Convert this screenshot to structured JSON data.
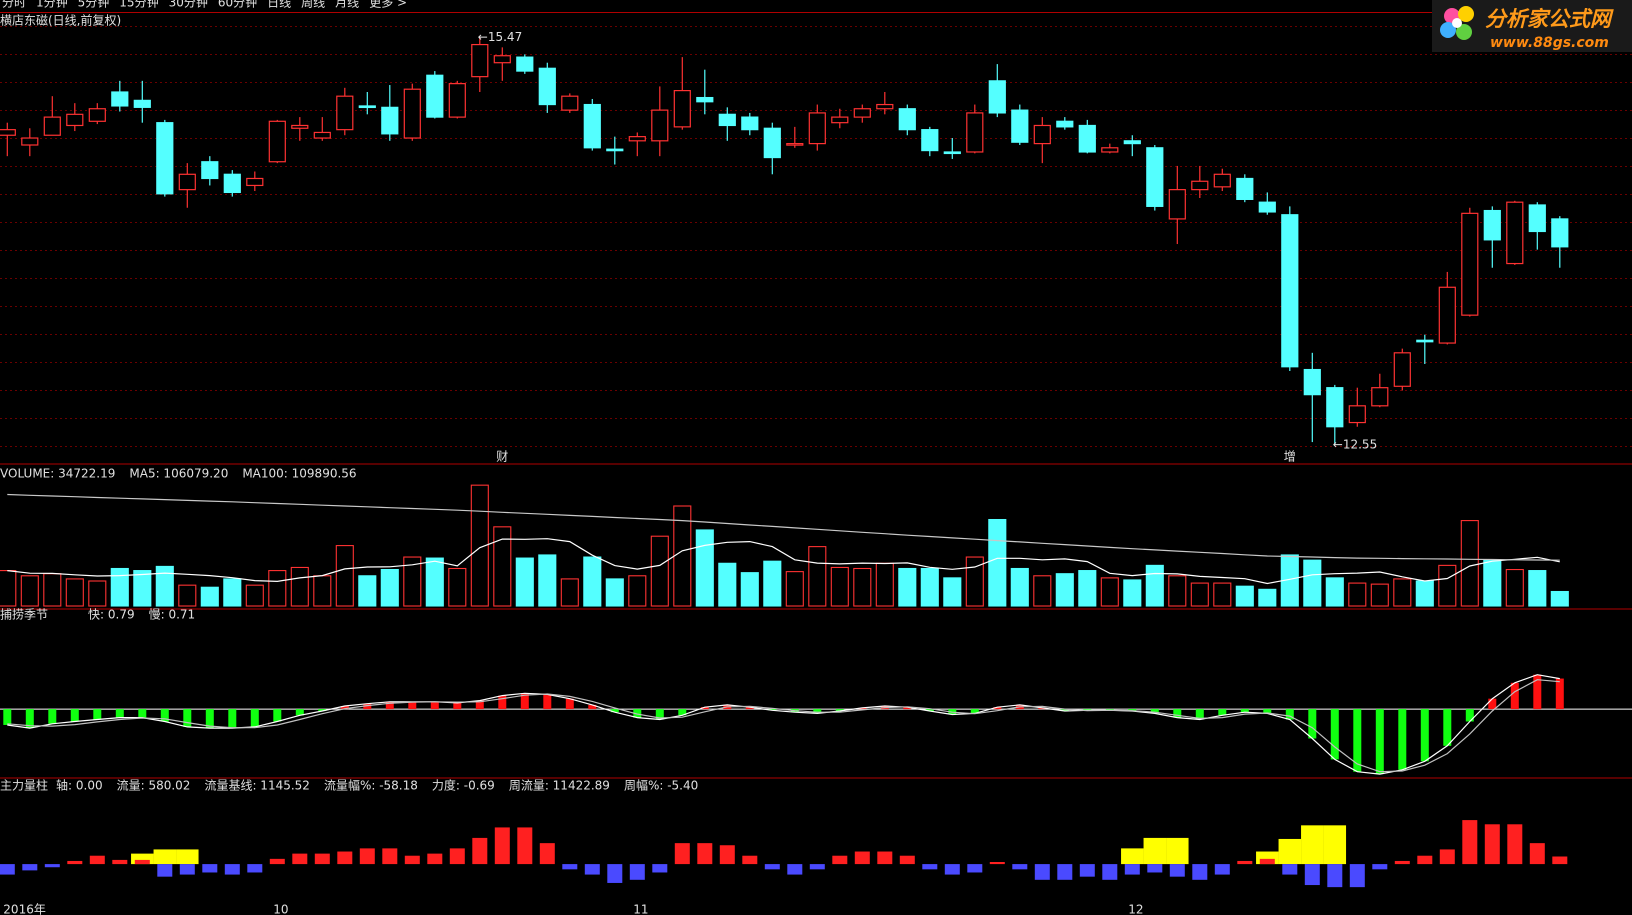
{
  "toolbar": {
    "items": [
      {
        "text": "分时",
        "color": "#d8d8d8"
      },
      {
        "text": "1分钟",
        "color": "#d8d8d8"
      },
      {
        "text": "5分钟",
        "color": "#d8d8d8"
      },
      {
        "text": "15分钟",
        "color": "#d8d8d8"
      },
      {
        "text": "30分钟",
        "color": "#d8d8d8"
      },
      {
        "text": "60分钟",
        "color": "#d8d8d8"
      },
      {
        "text": "日线",
        "color": "#54ffff"
      },
      {
        "text": "周线",
        "color": "#d8d8d8"
      },
      {
        "text": "月线",
        "color": "#d8d8d8"
      },
      {
        "text": "更多 >",
        "color": "#d8d8d8"
      }
    ]
  },
  "watermark": {
    "title": "分析家公式网",
    "url": "www.88gs.com"
  },
  "chart_data": [
    {
      "type": "candlestick",
      "title": "横店东磁(日线,前复权)",
      "categories": [
        "2016年",
        null,
        null,
        null,
        null,
        null,
        null,
        null,
        null,
        null,
        null,
        null,
        "10",
        null,
        null,
        null,
        null,
        null,
        null,
        null,
        null,
        null,
        null,
        null,
        null,
        null,
        null,
        null,
        "11",
        null,
        null,
        null,
        null,
        null,
        null,
        null,
        null,
        null,
        null,
        null,
        null,
        null,
        null,
        null,
        null,
        null,
        null,
        null,
        null,
        null,
        "12",
        null,
        null,
        null,
        null,
        null,
        null,
        null,
        null,
        null,
        null,
        null,
        null,
        null,
        null,
        null,
        null,
        null,
        null,
        null
      ],
      "open": [
        14.77,
        14.7,
        14.77,
        14.84,
        14.87,
        15.08,
        15.02,
        14.86,
        14.38,
        14.58,
        14.49,
        14.41,
        14.58,
        14.82,
        14.75,
        14.81,
        14.98,
        14.97,
        14.75,
        15.2,
        14.9,
        15.19,
        15.29,
        15.33,
        15.25,
        14.95,
        14.99,
        14.67,
        14.73,
        14.73,
        14.83,
        15.04,
        14.92,
        14.9,
        14.82,
        14.7,
        14.71,
        14.86,
        14.9,
        14.96,
        14.96,
        14.81,
        14.65,
        14.65,
        15.16,
        14.95,
        14.71,
        14.87,
        14.84,
        14.65,
        14.73,
        14.68,
        14.17,
        14.38,
        14.4,
        14.46,
        14.29,
        14.2,
        13.09,
        12.96,
        12.71,
        12.83,
        12.97,
        13.3,
        13.28,
        13.48,
        14.23,
        13.85,
        14.27,
        14.17
      ],
      "high": [
        14.86,
        14.82,
        15.05,
        15.0,
        15.0,
        15.16,
        15.16,
        14.88,
        14.57,
        14.62,
        14.52,
        14.51,
        14.88,
        14.9,
        14.9,
        15.11,
        15.08,
        15.13,
        15.14,
        15.23,
        15.16,
        15.47,
        15.4,
        15.35,
        15.29,
        15.07,
        15.03,
        14.76,
        14.79,
        15.12,
        15.33,
        15.24,
        14.97,
        14.93,
        14.86,
        14.83,
        14.99,
        14.96,
        14.99,
        15.08,
        14.99,
        14.83,
        14.75,
        14.99,
        15.28,
        14.99,
        14.9,
        14.9,
        14.88,
        14.71,
        14.77,
        14.7,
        14.55,
        14.55,
        14.53,
        14.49,
        14.36,
        14.26,
        13.21,
        12.98,
        12.96,
        13.06,
        13.24,
        13.34,
        13.79,
        14.25,
        14.26,
        14.3,
        14.29,
        14.19
      ],
      "low": [
        14.62,
        14.62,
        14.77,
        14.8,
        14.85,
        14.94,
        14.86,
        14.33,
        14.25,
        14.41,
        14.33,
        14.37,
        14.57,
        14.73,
        14.73,
        14.77,
        14.92,
        14.73,
        14.73,
        14.89,
        14.89,
        15.08,
        15.16,
        15.21,
        14.93,
        14.93,
        14.66,
        14.56,
        14.62,
        14.62,
        14.81,
        14.92,
        14.73,
        14.77,
        14.49,
        14.68,
        14.66,
        14.82,
        14.86,
        14.92,
        14.77,
        14.62,
        14.6,
        14.64,
        14.9,
        14.7,
        14.57,
        14.81,
        14.64,
        14.64,
        14.62,
        14.23,
        13.99,
        14.32,
        14.37,
        14.29,
        14.2,
        13.08,
        12.57,
        12.55,
        12.68,
        12.82,
        12.94,
        13.13,
        13.27,
        13.47,
        13.82,
        13.84,
        13.95,
        13.82
      ],
      "close": [
        14.81,
        14.75,
        14.9,
        14.92,
        14.96,
        14.98,
        14.97,
        14.35,
        14.49,
        14.46,
        14.36,
        14.46,
        14.87,
        14.84,
        14.79,
        15.05,
        14.97,
        14.78,
        15.1,
        14.9,
        15.14,
        15.42,
        15.34,
        15.23,
        14.99,
        15.05,
        14.68,
        14.66,
        14.76,
        14.95,
        15.09,
        15.01,
        14.84,
        14.81,
        14.61,
        14.71,
        14.93,
        14.9,
        14.96,
        14.99,
        14.81,
        14.66,
        14.64,
        14.93,
        14.93,
        14.72,
        14.84,
        14.83,
        14.65,
        14.68,
        14.71,
        14.26,
        14.38,
        14.44,
        14.49,
        14.31,
        14.22,
        13.11,
        12.91,
        12.68,
        12.83,
        12.96,
        13.21,
        13.29,
        13.68,
        14.21,
        14.02,
        14.29,
        14.08,
        13.97
      ],
      "ylim": [
        12.42,
        15.65
      ],
      "up_color": "#ff3232",
      "down_color": "#54ffff",
      "max_label": "←15.47",
      "min_label": "←12.55",
      "event_labels": [
        null,
        null,
        null,
        null,
        null,
        null,
        null,
        null,
        null,
        null,
        null,
        null,
        null,
        null,
        null,
        null,
        null,
        null,
        null,
        null,
        null,
        null,
        "财",
        null,
        null,
        null,
        null,
        null,
        null,
        null,
        null,
        null,
        null,
        null,
        null,
        null,
        null,
        null,
        null,
        null,
        null,
        null,
        null,
        null,
        null,
        null,
        null,
        null,
        null,
        null,
        null,
        null,
        null,
        null,
        null,
        null,
        null,
        "增",
        null,
        null,
        null,
        null,
        null,
        null,
        null,
        null,
        null,
        null,
        null,
        null
      ]
    },
    {
      "type": "volume",
      "legend": [
        {
          "text": "VOLUME: 34722.19",
          "color": "#e0e0e0"
        },
        {
          "text": "MA5: 106079.20",
          "color": "#e0e0e0"
        },
        {
          "text": "MA100: 109890.56",
          "color": "#e0e0e0"
        }
      ],
      "values": [
        85000,
        72500,
        77500,
        65000,
        60000,
        90000,
        85000,
        95000,
        50000,
        45000,
        65000,
        50000,
        85000,
        92500,
        72500,
        145000,
        72500,
        87500,
        117500,
        115000,
        90000,
        290000,
        190000,
        115000,
        122500,
        65000,
        117500,
        65000,
        72500,
        167500,
        240000,
        182500,
        102500,
        80000,
        107500,
        82500,
        142500,
        92500,
        90000,
        102500,
        90000,
        90000,
        67500,
        117500,
        207500,
        90000,
        72500,
        77500,
        85000,
        67500,
        62500,
        97500,
        72500,
        55000,
        55000,
        47500,
        40000,
        122500,
        110000,
        67500,
        55000,
        52500,
        65000,
        60000,
        97500,
        205000,
        110000,
        87500,
        85000,
        34722.19
      ],
      "series": [
        {
          "color": "#ffffff",
          "values": [
            85000,
            78750,
            78250,
            75000,
            72000,
            73000,
            75500,
            79000,
            76000,
            73000,
            68000,
            61000,
            59000,
            67500,
            73000,
            89000,
            93500,
            94000,
            99000,
            107500,
            96500,
            140000,
            160500,
            160000,
            161500,
            154500,
            122000,
            97000,
            88500,
            97500,
            132500,
            145500,
            153000,
            154500,
            142500,
            111000,
            103000,
            101000,
            103000,
            102000,
            103500,
            93000,
            88000,
            93500,
            114500,
            114500,
            111000,
            113000,
            106500,
            78500,
            73000,
            78000,
            77000,
            71000,
            68500,
            65500,
            54000,
            64000,
            75000,
            77500,
            79000,
            81500,
            70000,
            60000,
            66000,
            96000,
            107500,
            112000,
            117000,
            106079.2
          ]
        },
        {
          "color": "#c8c8c8",
          "values": [
            267500,
            265750,
            264000,
            262250,
            260500,
            258750,
            257000,
            255250,
            253500,
            251750,
            250000,
            248000,
            246000,
            244000,
            242000,
            240000,
            238000,
            236000,
            234000,
            232000,
            230000,
            227500,
            225000,
            222500,
            220000,
            217500,
            215000,
            212500,
            210000,
            207500,
            205000,
            201500,
            198000,
            194500,
            191000,
            187500,
            184000,
            180500,
            177000,
            173500,
            170000,
            166750,
            163500,
            160250,
            157000,
            153750,
            150500,
            147250,
            144000,
            140750,
            137500,
            134600,
            131700,
            128800,
            125900,
            123000,
            120000,
            118750,
            117500,
            116250,
            115000,
            114400,
            113800,
            113300,
            112700,
            112100,
            111500,
            111000,
            110400,
            109890.56
          ]
        }
      ],
      "ylim": [
        0,
        300000
      ],
      "up_color": "#ff3232",
      "down_color": "#54ffff"
    },
    {
      "type": "oscillator",
      "title": "捕捞季节",
      "legend": [
        {
          "text": "快: 0.79",
          "color": "#ffff60"
        },
        {
          "text": "慢: 0.71",
          "color": "#40ff40"
        }
      ],
      "values": [
        -0.41,
        -0.49,
        -0.38,
        -0.32,
        -0.27,
        -0.22,
        -0.22,
        -0.32,
        -0.46,
        -0.49,
        -0.49,
        -0.46,
        -0.32,
        -0.16,
        -0.05,
        0.08,
        0.14,
        0.19,
        0.19,
        0.19,
        0.16,
        0.22,
        0.35,
        0.41,
        0.38,
        0.27,
        0.11,
        -0.08,
        -0.22,
        -0.27,
        -0.16,
        0.05,
        0.11,
        0.05,
        -0.03,
        -0.08,
        -0.11,
        -0.05,
        0.03,
        0.08,
        0.05,
        -0.05,
        -0.14,
        -0.11,
        0.05,
        0.11,
        0.03,
        -0.05,
        -0.03,
        -0.03,
        -0.05,
        -0.11,
        -0.22,
        -0.27,
        -0.16,
        -0.08,
        -0.11,
        -0.27,
        -0.76,
        -1.3,
        -1.62,
        -1.68,
        -1.57,
        -1.35,
        -0.95,
        -0.32,
        0.27,
        0.68,
        0.89,
        0.79
      ],
      "line_color": "#ffffff",
      "series": [
        {
          "color": "#c0c0c0",
          "values": [
            -0.38,
            -0.43,
            -0.44,
            -0.4,
            -0.33,
            -0.27,
            -0.23,
            -0.25,
            -0.35,
            -0.44,
            -0.48,
            -0.48,
            -0.41,
            -0.27,
            -0.12,
            0.01,
            0.09,
            0.15,
            0.18,
            0.19,
            0.18,
            0.19,
            0.27,
            0.36,
            0.39,
            0.33,
            0.2,
            0.03,
            -0.13,
            -0.23,
            -0.21,
            -0.07,
            0.06,
            0.07,
            0.02,
            -0.04,
            -0.08,
            -0.08,
            -0.02,
            0.04,
            0.06,
            0.01,
            -0.08,
            -0.12,
            -0.04,
            0.06,
            0.07,
            0.0,
            -0.04,
            -0.03,
            -0.04,
            -0.08,
            -0.16,
            -0.24,
            -0.22,
            -0.13,
            -0.1,
            -0.18,
            -0.48,
            -0.98,
            -1.42,
            -1.62,
            -1.6,
            -1.45,
            -1.15,
            -0.64,
            -0.05,
            0.45,
            0.76,
            0.71
          ]
        }
      ],
      "ylim": [
        -1.73,
        2.24
      ],
      "up_color": "#ff1010",
      "down_color": "#10ff10"
    },
    {
      "type": "flow",
      "title": "主力量柱",
      "legend": [
        {
          "text": "轴: 0.00",
          "color": "#00d000"
        },
        {
          "text": "流量: 580.02",
          "color": "#ff3030"
        },
        {
          "text": "流量基线: 1145.52",
          "color": "#00d000"
        },
        {
          "text": "流量幅%: -58.18",
          "color": "#ff40ff"
        },
        {
          "text": "力度: -0.69",
          "color": "#ff3030"
        },
        {
          "text": "周流量: 11422.89",
          "color": "#ff40ff"
        },
        {
          "text": "周幅%: -5.40",
          "color": "#ff40ff"
        }
      ],
      "values": [
        -800,
        -480,
        -240,
        240,
        640,
        320,
        320,
        -960,
        -800,
        -640,
        -800,
        -640,
        400,
        800,
        800,
        960,
        1200,
        1200,
        640,
        800,
        1200,
        2000,
        2800,
        2800,
        1600,
        -400,
        -800,
        -1440,
        -1200,
        -640,
        1600,
        1600,
        1440,
        640,
        -400,
        -800,
        -400,
        640,
        960,
        960,
        640,
        -400,
        -800,
        -640,
        160,
        -400,
        -1200,
        -1200,
        -960,
        -1200,
        -800,
        -640,
        -960,
        -1200,
        -800,
        240,
        400,
        -800,
        -1600,
        -1760,
        -1760,
        -400,
        240,
        640,
        1120,
        3360,
        3040,
        3040,
        1600,
        580.02
      ],
      "highlight": {
        "color": "#ffff00",
        "values": [
          null,
          null,
          null,
          null,
          null,
          null,
          800,
          1120,
          1120,
          null,
          null,
          null,
          null,
          null,
          null,
          null,
          null,
          null,
          null,
          null,
          null,
          null,
          null,
          null,
          null,
          null,
          null,
          null,
          null,
          null,
          null,
          null,
          null,
          null,
          null,
          null,
          null,
          null,
          null,
          null,
          null,
          null,
          null,
          null,
          null,
          null,
          null,
          null,
          null,
          null,
          1200,
          2000,
          2000,
          null,
          null,
          null,
          960,
          1920,
          2960,
          2960,
          null,
          null,
          null,
          null,
          null,
          null,
          null,
          null,
          null,
          null
        ]
      },
      "ylim": [
        -3200,
        5200
      ],
      "up_color": "#ff2020",
      "down_color": "#4a4aff"
    }
  ]
}
